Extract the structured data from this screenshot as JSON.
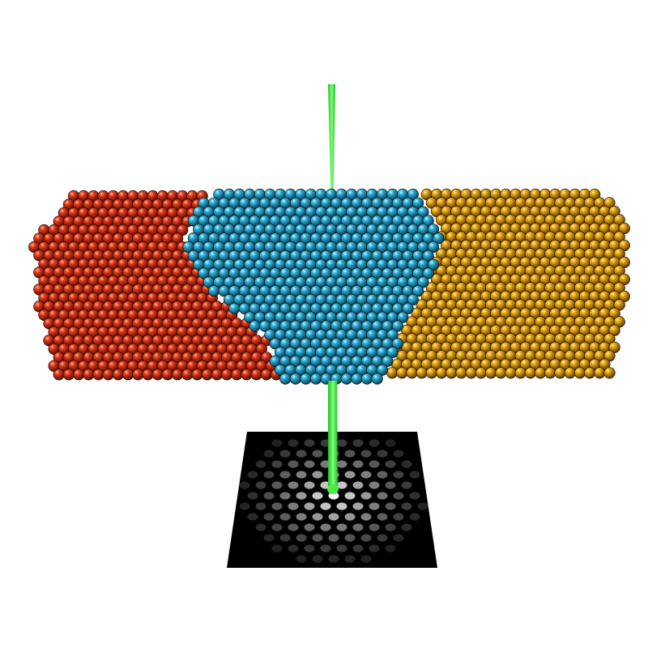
{
  "scene": {
    "background": "#ffffff",
    "grains": [
      {
        "name": "red-grain",
        "color": "#d42a10"
      },
      {
        "name": "cyan-grain",
        "color": "#27a9d2"
      },
      {
        "name": "gold-grain",
        "color": "#e4a10d"
      }
    ],
    "beam": {
      "name": "electron-beam",
      "color": "#33ee33"
    },
    "detector": {
      "name": "diffraction-pattern",
      "background": "#000000",
      "spot_color": "#ffffff"
    }
  }
}
